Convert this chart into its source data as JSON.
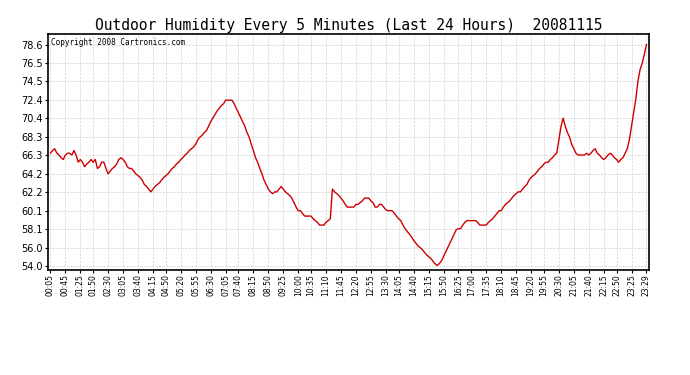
{
  "title": "Outdoor Humidity Every 5 Minutes (Last 24 Hours)  20081115",
  "copyright": "Copyright 2008 Cartronics.com",
  "yticks": [
    54.0,
    56.0,
    58.1,
    60.1,
    62.2,
    64.2,
    66.3,
    68.3,
    70.4,
    72.4,
    74.5,
    76.5,
    78.6
  ],
  "ymin": 53.5,
  "ymax": 79.8,
  "line_color": "#cc0000",
  "bg_color": "#ffffff",
  "grid_color": "#c8c8c8",
  "xtick_labels": [
    "00:05",
    "00:45",
    "01:25",
    "01:50",
    "02:30",
    "03:05",
    "03:40",
    "04:15",
    "04:50",
    "05:20",
    "05:55",
    "06:30",
    "07:05",
    "07:40",
    "08:15",
    "08:50",
    "09:25",
    "10:00",
    "10:35",
    "11:10",
    "11:45",
    "12:20",
    "12:55",
    "13:30",
    "14:05",
    "14:40",
    "15:15",
    "15:50",
    "16:25",
    "17:00",
    "17:35",
    "18:10",
    "18:45",
    "19:20",
    "19:55",
    "20:30",
    "21:05",
    "21:40",
    "22:15",
    "22:50",
    "23:25",
    "23:29"
  ],
  "y_values": [
    66.5,
    66.8,
    67.0,
    66.5,
    66.3,
    66.0,
    65.8,
    66.3,
    66.5,
    66.5,
    66.3,
    66.8,
    66.3,
    65.5,
    65.8,
    65.5,
    65.0,
    65.3,
    65.5,
    65.8,
    65.5,
    65.8,
    64.8,
    65.0,
    65.5,
    65.5,
    64.8,
    64.2,
    64.5,
    64.8,
    65.0,
    65.3,
    65.8,
    66.0,
    65.8,
    65.5,
    65.0,
    64.8,
    64.8,
    64.5,
    64.2,
    64.0,
    63.8,
    63.5,
    63.0,
    62.8,
    62.5,
    62.2,
    62.5,
    62.8,
    63.0,
    63.2,
    63.5,
    63.8,
    64.0,
    64.2,
    64.5,
    64.8,
    65.0,
    65.3,
    65.5,
    65.8,
    66.0,
    66.3,
    66.5,
    66.8,
    67.0,
    67.2,
    67.5,
    68.0,
    68.3,
    68.5,
    68.8,
    69.0,
    69.5,
    70.0,
    70.4,
    70.8,
    71.2,
    71.5,
    71.8,
    72.0,
    72.4,
    72.4,
    72.4,
    72.4,
    72.0,
    71.5,
    71.0,
    70.5,
    70.0,
    69.5,
    68.8,
    68.3,
    67.5,
    66.8,
    66.0,
    65.5,
    64.8,
    64.2,
    63.5,
    63.0,
    62.5,
    62.2,
    62.0,
    62.2,
    62.2,
    62.5,
    62.8,
    62.5,
    62.2,
    62.0,
    61.8,
    61.5,
    61.0,
    60.5,
    60.1,
    60.1,
    59.8,
    59.5,
    59.5,
    59.5,
    59.5,
    59.2,
    59.0,
    58.8,
    58.5,
    58.5,
    58.5,
    58.8,
    59.0,
    59.2,
    62.5,
    62.2,
    62.0,
    61.8,
    61.5,
    61.2,
    60.8,
    60.5,
    60.5,
    60.5,
    60.5,
    60.8,
    60.8,
    61.0,
    61.2,
    61.5,
    61.5,
    61.5,
    61.2,
    61.0,
    60.5,
    60.5,
    60.8,
    60.8,
    60.5,
    60.2,
    60.1,
    60.1,
    60.1,
    59.8,
    59.5,
    59.2,
    59.0,
    58.5,
    58.1,
    57.8,
    57.5,
    57.2,
    56.8,
    56.5,
    56.2,
    56.0,
    55.8,
    55.5,
    55.2,
    55.0,
    54.8,
    54.5,
    54.2,
    54.0,
    54.2,
    54.5,
    55.0,
    55.5,
    56.0,
    56.5,
    57.0,
    57.5,
    58.0,
    58.1,
    58.1,
    58.5,
    58.8,
    59.0,
    59.0,
    59.0,
    59.0,
    59.0,
    58.8,
    58.5,
    58.5,
    58.5,
    58.5,
    58.8,
    59.0,
    59.2,
    59.5,
    59.8,
    60.1,
    60.1,
    60.5,
    60.8,
    61.0,
    61.2,
    61.5,
    61.8,
    62.0,
    62.2,
    62.2,
    62.5,
    62.8,
    63.0,
    63.5,
    63.8,
    64.0,
    64.2,
    64.5,
    64.8,
    65.0,
    65.3,
    65.5,
    65.5,
    65.8,
    66.0,
    66.3,
    66.5,
    68.0,
    69.5,
    70.4,
    69.5,
    68.8,
    68.3,
    67.5,
    67.0,
    66.5,
    66.3,
    66.3,
    66.3,
    66.3,
    66.5,
    66.3,
    66.5,
    66.8,
    67.0,
    66.5,
    66.3,
    66.0,
    65.8,
    66.0,
    66.3,
    66.5,
    66.3,
    66.0,
    65.8,
    65.5,
    65.8,
    66.0,
    66.5,
    67.0,
    68.0,
    69.5,
    71.0,
    72.5,
    74.5,
    75.8,
    76.5,
    77.5,
    78.6
  ]
}
